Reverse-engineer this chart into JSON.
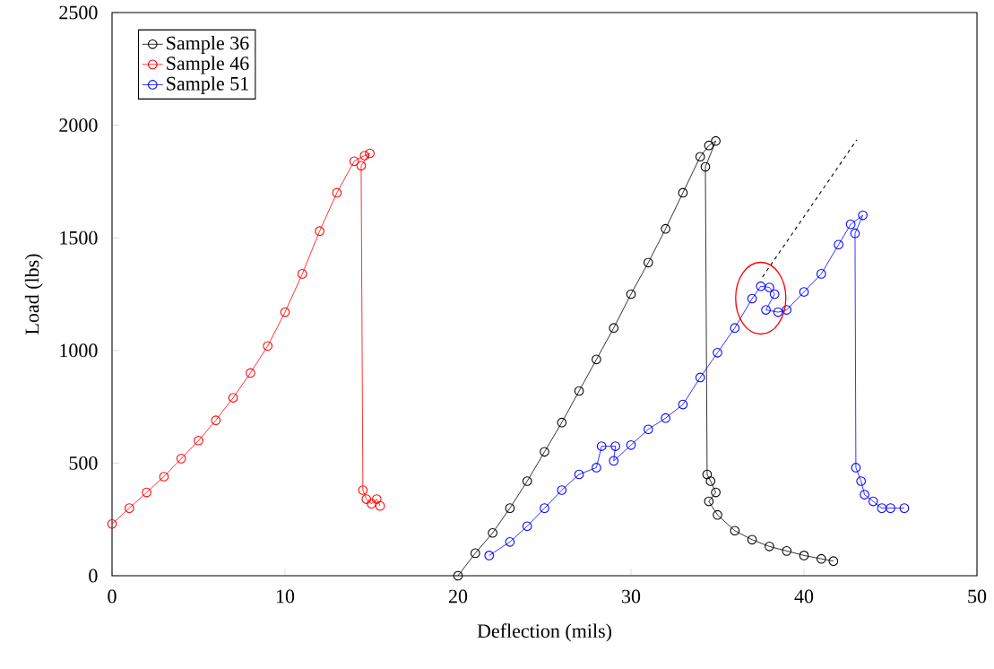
{
  "chart_data": {
    "type": "line",
    "xlabel": "Deflection (mils)",
    "ylabel": "Load (lbs)",
    "xlim": [
      0,
      50
    ],
    "ylim": [
      0,
      2500
    ],
    "xticks": [
      0,
      10,
      20,
      30,
      40,
      50
    ],
    "yticks": [
      0,
      500,
      1000,
      1500,
      2000,
      2500
    ],
    "grid": false,
    "legend": "top left",
    "marker": "circle",
    "line_style": "solid",
    "series": [
      {
        "name": "Sample 36",
        "color": "#000000",
        "x": [
          20,
          21,
          22,
          23,
          24,
          25,
          26,
          27,
          28,
          29,
          30,
          31,
          32,
          33,
          34,
          34.5,
          34.9,
          34.3,
          34.4,
          34.6,
          34.9,
          34.5,
          35,
          36,
          37,
          38,
          39,
          40,
          41,
          41.7
        ],
        "values": [
          0,
          100,
          190,
          300,
          420,
          550,
          680,
          820,
          960,
          1100,
          1250,
          1390,
          1540,
          1700,
          1860,
          1910,
          1930,
          1815,
          450,
          420,
          370,
          330,
          270,
          200,
          160,
          130,
          110,
          90,
          75,
          65
        ]
      },
      {
        "name": "Sample 46",
        "color": "#ff0000",
        "x": [
          0,
          1,
          2,
          3,
          4,
          5,
          6,
          7,
          8,
          9,
          10,
          11,
          12,
          13,
          14,
          14.6,
          14.9,
          14.4,
          14.5,
          14.7,
          15,
          15.3,
          15.5
        ],
        "values": [
          230,
          300,
          370,
          440,
          520,
          600,
          690,
          790,
          900,
          1020,
          1170,
          1340,
          1530,
          1700,
          1840,
          1865,
          1875,
          1820,
          380,
          340,
          320,
          340,
          310
        ]
      },
      {
        "name": "Sample 51",
        "color": "#0000ff",
        "x": [
          21.8,
          23,
          24,
          25,
          26,
          27,
          28,
          28.3,
          29.1,
          29,
          30,
          31,
          32,
          33,
          34,
          35,
          36,
          37,
          37.5,
          38,
          38.3,
          37.8,
          38.5,
          39,
          40,
          41,
          42,
          42.7,
          43.4,
          42.95,
          43,
          43.3,
          43.5,
          44,
          44.5,
          45,
          45.8
        ],
        "values": [
          90,
          150,
          220,
          300,
          380,
          450,
          480,
          575,
          575,
          510,
          580,
          650,
          700,
          760,
          880,
          990,
          1100,
          1230,
          1285,
          1280,
          1250,
          1180,
          1170,
          1180,
          1260,
          1340,
          1470,
          1560,
          1600,
          1520,
          480,
          420,
          360,
          330,
          300,
          300,
          300
        ]
      },
      {
        "type": "line",
        "color": "#000000",
        "marker": "none",
        "line_style": "dashed",
        "x": [
          37.6,
          43.05
        ],
        "values": [
          1326,
          1935
        ]
      }
    ]
  }
}
